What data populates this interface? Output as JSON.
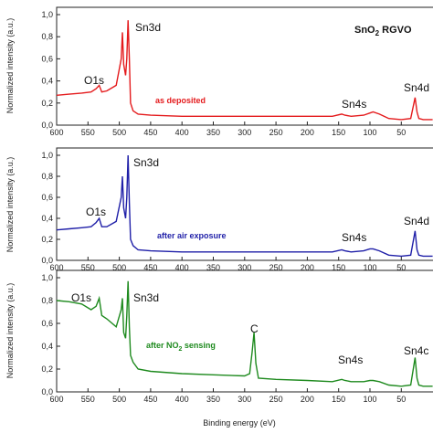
{
  "chart_data": {
    "type": "line",
    "title_main": "SnO",
    "title_sub": "2",
    "title_rest": " RGVO",
    "xlabel": "Binding energy (eV)",
    "ylabel": "Normalized intensity (a.u.)",
    "xlim": [
      600,
      0
    ],
    "ylim": [
      0,
      1.0
    ],
    "xticks": [
      "600",
      "550",
      "500",
      "450",
      "400",
      "350",
      "300",
      "250",
      "200",
      "150",
      "100",
      "50"
    ],
    "yticks": [
      "0,0",
      "0,2",
      "0,4",
      "0,6",
      "0,8",
      "1,0"
    ],
    "panels": [
      {
        "name": "as deposited",
        "label_parts": [
          "as deposited"
        ],
        "color": "#e41a1c",
        "peak_labels": [
          "O1s",
          "Sn3d",
          "Sn4s",
          "Sn4d"
        ],
        "x": [
          600,
          580,
          560,
          545,
          537,
          532,
          528,
          520,
          505,
          497,
          495,
          493,
          490,
          488,
          486,
          484,
          482,
          478,
          470,
          450,
          400,
          350,
          300,
          250,
          200,
          160,
          145,
          140,
          130,
          110,
          100,
          95,
          85,
          70,
          50,
          35,
          28,
          25,
          22,
          15,
          0
        ],
        "values": [
          0.27,
          0.28,
          0.29,
          0.3,
          0.33,
          0.36,
          0.3,
          0.31,
          0.36,
          0.6,
          0.84,
          0.55,
          0.45,
          0.6,
          0.95,
          0.6,
          0.2,
          0.13,
          0.1,
          0.09,
          0.08,
          0.08,
          0.08,
          0.08,
          0.08,
          0.08,
          0.1,
          0.09,
          0.08,
          0.09,
          0.11,
          0.12,
          0.1,
          0.06,
          0.05,
          0.06,
          0.25,
          0.12,
          0.06,
          0.05,
          0.05
        ]
      },
      {
        "name": "after air exposure",
        "label_parts": [
          "after air exposure"
        ],
        "color": "#1f1fa8",
        "peak_labels": [
          "O1s",
          "Sn3d",
          "Sn4s",
          "Sn4d"
        ],
        "x": [
          600,
          580,
          560,
          545,
          537,
          532,
          528,
          520,
          505,
          497,
          495,
          493,
          490,
          488,
          486,
          484,
          482,
          478,
          470,
          450,
          400,
          350,
          300,
          250,
          200,
          160,
          145,
          140,
          130,
          110,
          100,
          95,
          85,
          70,
          50,
          35,
          28,
          25,
          22,
          15,
          0
        ],
        "values": [
          0.29,
          0.3,
          0.31,
          0.32,
          0.36,
          0.4,
          0.32,
          0.32,
          0.37,
          0.6,
          0.8,
          0.5,
          0.4,
          0.6,
          1.0,
          0.55,
          0.2,
          0.14,
          0.1,
          0.09,
          0.08,
          0.08,
          0.08,
          0.08,
          0.08,
          0.08,
          0.1,
          0.09,
          0.08,
          0.09,
          0.11,
          0.11,
          0.09,
          0.05,
          0.04,
          0.05,
          0.28,
          0.1,
          0.05,
          0.04,
          0.04
        ]
      },
      {
        "name": "after NO2 sensing",
        "label_parts": [
          "after NO",
          "2",
          " sensing"
        ],
        "color": "#1e8a1e",
        "peak_labels": [
          "O1s",
          "Sn3d",
          "C",
          "Sn4s",
          "Sn4c"
        ],
        "x": [
          600,
          580,
          560,
          545,
          537,
          532,
          528,
          520,
          505,
          497,
          495,
          493,
          490,
          488,
          486,
          484,
          482,
          478,
          470,
          450,
          400,
          350,
          300,
          292,
          288,
          285,
          282,
          278,
          250,
          200,
          160,
          145,
          140,
          130,
          110,
          100,
          95,
          85,
          70,
          50,
          35,
          28,
          25,
          22,
          15,
          0
        ],
        "values": [
          0.8,
          0.79,
          0.77,
          0.72,
          0.75,
          0.82,
          0.67,
          0.64,
          0.57,
          0.72,
          0.82,
          0.52,
          0.47,
          0.67,
          0.97,
          0.57,
          0.32,
          0.26,
          0.2,
          0.18,
          0.16,
          0.15,
          0.14,
          0.16,
          0.35,
          0.52,
          0.25,
          0.12,
          0.11,
          0.1,
          0.09,
          0.11,
          0.1,
          0.09,
          0.09,
          0.1,
          0.1,
          0.09,
          0.06,
          0.05,
          0.06,
          0.3,
          0.12,
          0.06,
          0.05,
          0.05
        ]
      }
    ]
  }
}
